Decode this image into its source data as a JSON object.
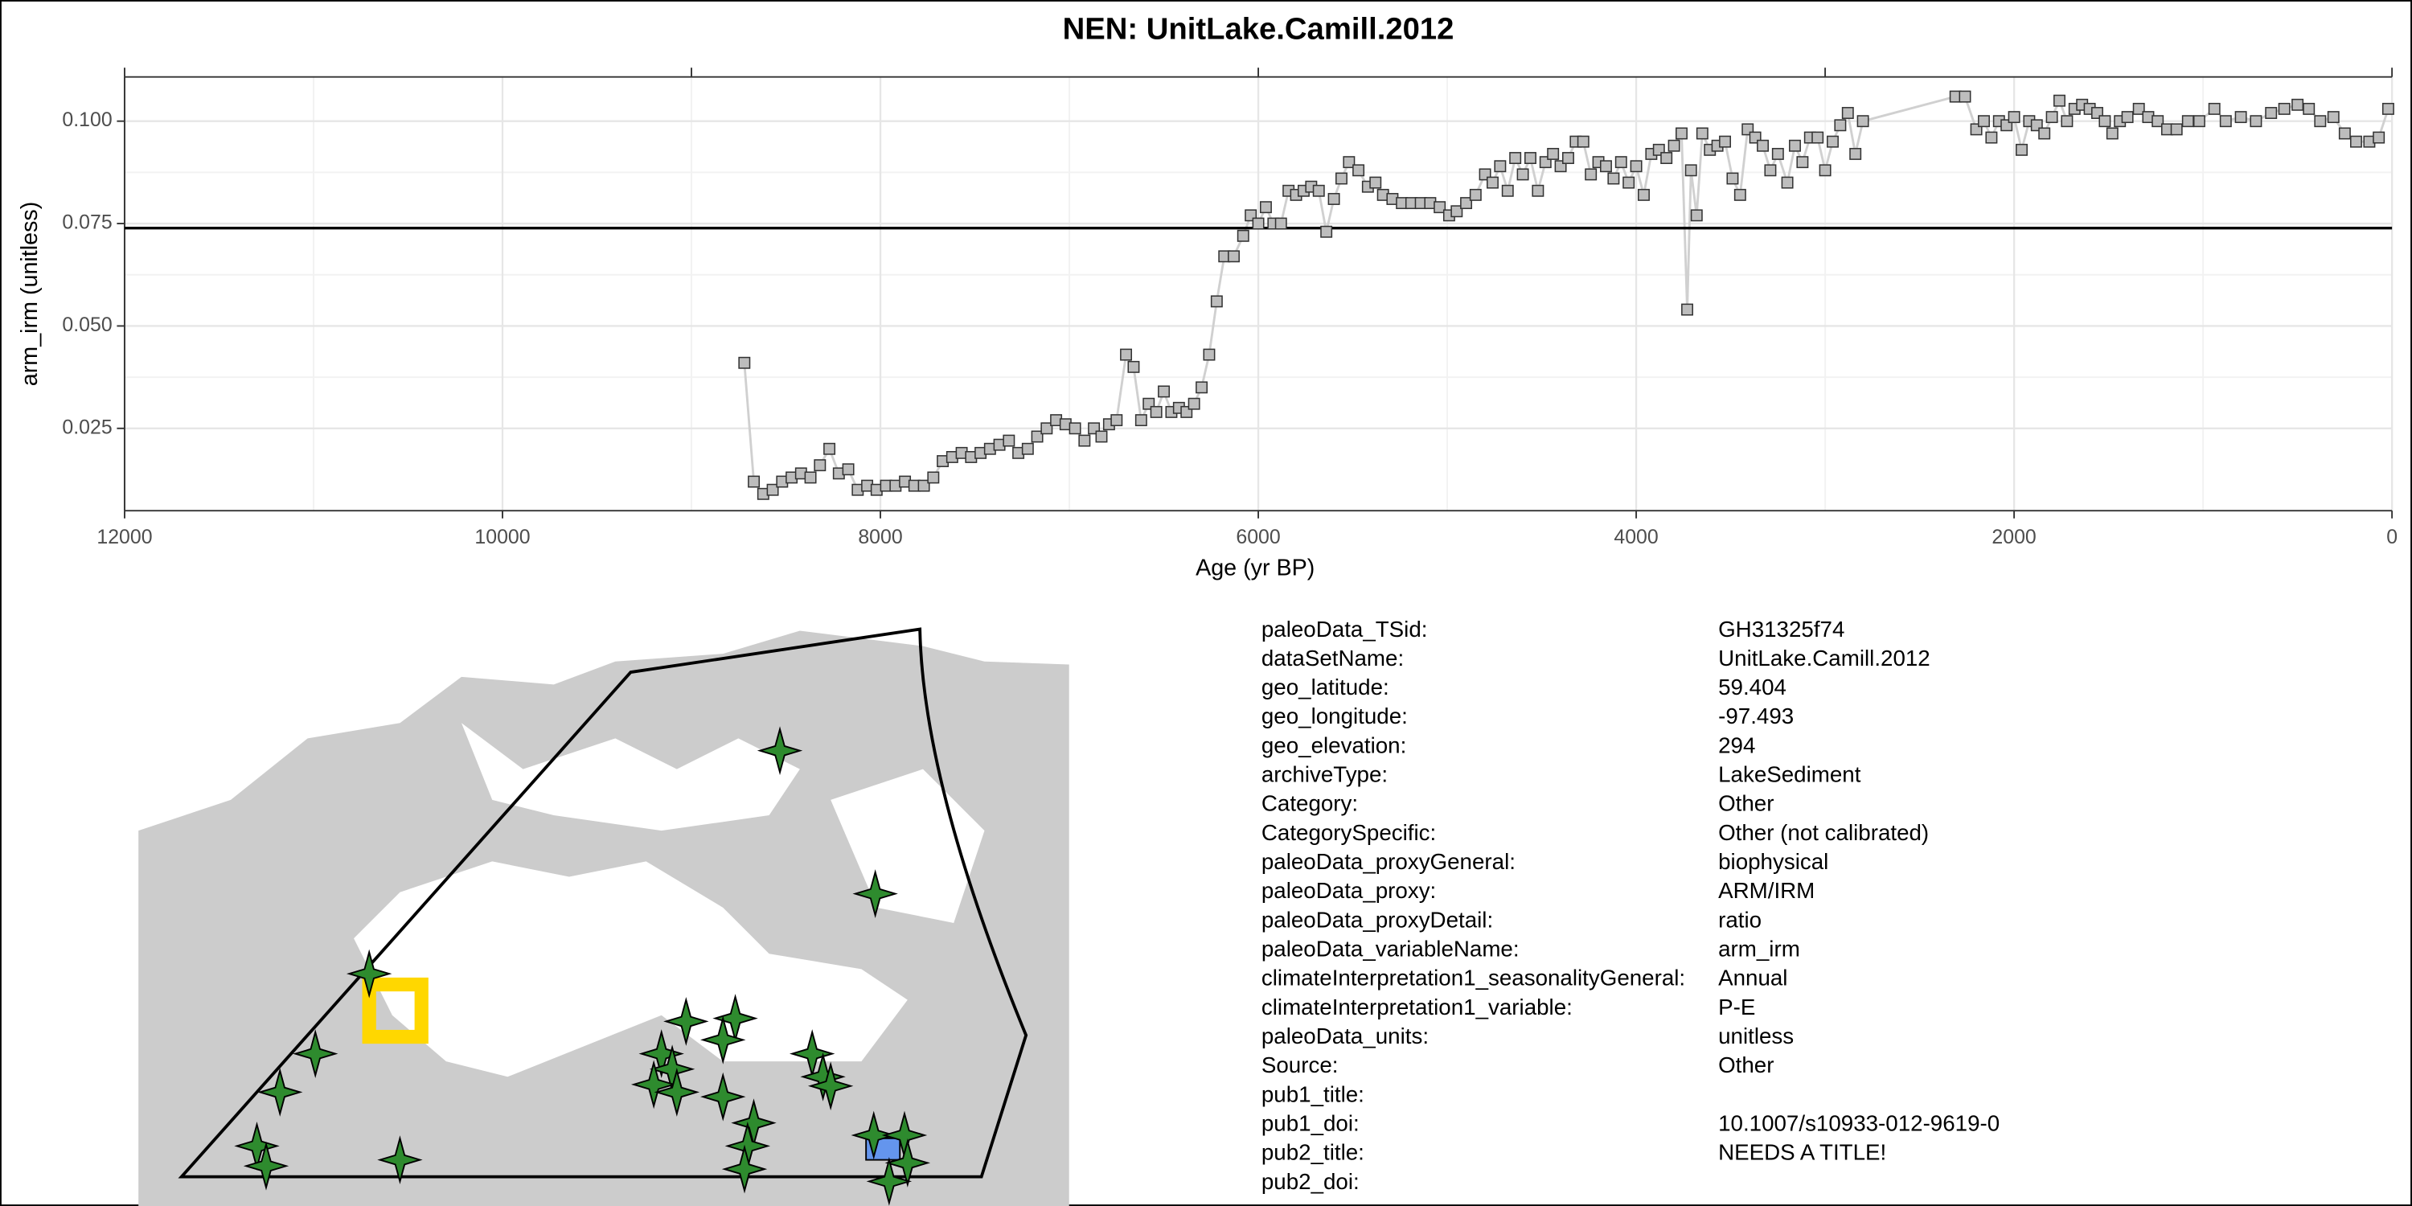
{
  "chart_data": {
    "type": "line",
    "title": "NEN: UnitLake.Camill.2012",
    "xlabel": "Age (yr BP)",
    "ylabel": "arm_irm (unitless)",
    "x": [
      8720,
      8670,
      8620,
      8570,
      8520,
      8470,
      8420,
      8370,
      8320,
      8270,
      8220,
      8170,
      8120,
      8070,
      8020,
      7970,
      7920,
      7870,
      7820,
      7770,
      7720,
      7670,
      7620,
      7570,
      7520,
      7470,
      7420,
      7370,
      7320,
      7270,
      7220,
      7170,
      7120,
      7070,
      7020,
      6970,
      6920,
      6870,
      6830,
      6790,
      6750,
      6700,
      6660,
      6620,
      6580,
      6540,
      6500,
      6460,
      6420,
      6380,
      6340,
      6300,
      6260,
      6220,
      6180,
      6130,
      6080,
      6040,
      6000,
      5960,
      5920,
      5880,
      5840,
      5800,
      5760,
      5720,
      5680,
      5640,
      5600,
      5560,
      5520,
      5470,
      5420,
      5380,
      5340,
      5290,
      5240,
      5190,
      5140,
      5090,
      5040,
      4990,
      4950,
      4900,
      4850,
      4800,
      4760,
      4720,
      4680,
      4640,
      4600,
      4560,
      4520,
      4480,
      4440,
      4400,
      4360,
      4320,
      4280,
      4240,
      4200,
      4160,
      4120,
      4080,
      4040,
      4000,
      3960,
      3920,
      3880,
      3840,
      3800,
      3760,
      3730,
      3710,
      3680,
      3650,
      3610,
      3570,
      3530,
      3490,
      3450,
      3410,
      3370,
      3330,
      3290,
      3250,
      3200,
      3160,
      3120,
      3080,
      3040,
      3000,
      2960,
      2920,
      2880,
      2840,
      2800,
      2310,
      2260,
      2200,
      2160,
      2120,
      2080,
      2040,
      2000,
      1960,
      1920,
      1880,
      1840,
      1800,
      1760,
      1720,
      1680,
      1640,
      1600,
      1560,
      1520,
      1480,
      1440,
      1400,
      1340,
      1290,
      1240,
      1190,
      1140,
      1080,
      1020,
      940,
      880,
      800,
      720,
      640,
      570,
      500,
      440,
      380,
      310,
      250,
      190,
      120,
      70,
      20
    ],
    "values": [
      0.041,
      0.012,
      0.009,
      0.01,
      0.012,
      0.013,
      0.014,
      0.013,
      0.016,
      0.02,
      0.014,
      0.015,
      0.01,
      0.011,
      0.01,
      0.011,
      0.011,
      0.012,
      0.011,
      0.011,
      0.013,
      0.017,
      0.018,
      0.019,
      0.018,
      0.019,
      0.02,
      0.021,
      0.022,
      0.019,
      0.02,
      0.023,
      0.025,
      0.027,
      0.026,
      0.025,
      0.022,
      0.025,
      0.023,
      0.026,
      0.027,
      0.043,
      0.04,
      0.027,
      0.031,
      0.029,
      0.034,
      0.029,
      0.03,
      0.029,
      0.031,
      0.035,
      0.043,
      0.056,
      0.067,
      0.067,
      0.072,
      0.077,
      0.075,
      0.079,
      0.075,
      0.075,
      0.083,
      0.082,
      0.083,
      0.084,
      0.083,
      0.073,
      0.081,
      0.086,
      0.09,
      0.088,
      0.084,
      0.085,
      0.082,
      0.081,
      0.08,
      0.08,
      0.08,
      0.08,
      0.079,
      0.077,
      0.078,
      0.08,
      0.082,
      0.087,
      0.085,
      0.089,
      0.083,
      0.091,
      0.087,
      0.091,
      0.083,
      0.09,
      0.092,
      0.089,
      0.091,
      0.095,
      0.095,
      0.087,
      0.09,
      0.089,
      0.086,
      0.09,
      0.085,
      0.089,
      0.082,
      0.092,
      0.093,
      0.091,
      0.094,
      0.097,
      0.054,
      0.088,
      0.077,
      0.097,
      0.093,
      0.094,
      0.095,
      0.086,
      0.082,
      0.098,
      0.096,
      0.094,
      0.088,
      0.092,
      0.085,
      0.094,
      0.09,
      0.096,
      0.096,
      0.088,
      0.095,
      0.099,
      0.102,
      0.092,
      0.1,
      0.106,
      0.106,
      0.098,
      0.1,
      0.096,
      0.1,
      0.099,
      0.101,
      0.093,
      0.1,
      0.099,
      0.097,
      0.101,
      0.105,
      0.1,
      0.103,
      0.104,
      0.103,
      0.102,
      0.1,
      0.097,
      0.1,
      0.101,
      0.103,
      0.101,
      0.1,
      0.098,
      0.098,
      0.1,
      0.1,
      0.103,
      0.1,
      0.101,
      0.1,
      0.102,
      0.103,
      0.104,
      0.103,
      0.1,
      0.101,
      0.097,
      0.095,
      0.095,
      0.096,
      0.103
    ],
    "color": "#bdbdbd",
    "line_color": "#d0d0d0",
    "xlim": [
      12000,
      0
    ],
    "xticks": [
      12000,
      10000,
      8000,
      6000,
      4000,
      2000,
      0
    ],
    "x2ticks": [
      12000,
      9000,
      6000,
      3000,
      0
    ],
    "ylim": [
      0.0049,
      0.1108
    ],
    "yticks": [
      0.025,
      {
        "value": 0.05,
        "label": "0.050"
      },
      0.075,
      {
        "value": 0.1,
        "label": "0.100"
      }
    ],
    "hline": 0.0739,
    "grid": true
  },
  "metadata": {
    "rows": [
      [
        "paleoData_TSid:",
        "GH31325f74"
      ],
      [
        "dataSetName:",
        "UnitLake.Camill.2012"
      ],
      [
        "geo_latitude:",
        "59.404"
      ],
      [
        "geo_longitude:",
        "-97.493"
      ],
      [
        "geo_elevation:",
        "294"
      ],
      [
        "archiveType:",
        "LakeSediment"
      ],
      [
        "Category:",
        "Other"
      ],
      [
        "CategorySpecific:",
        "Other (not calibrated)"
      ],
      [
        "paleoData_proxyGeneral:",
        "biophysical"
      ],
      [
        "paleoData_proxy:",
        "ARM/IRM"
      ],
      [
        "paleoData_proxyDetail:",
        "ratio"
      ],
      [
        "paleoData_variableName:",
        "arm_irm"
      ],
      [
        "climateInterpretation1_seasonalityGeneral:",
        "Annual"
      ],
      [
        "climateInterpretation1_variable:",
        "P-E"
      ],
      [
        "paleoData_units:",
        "unitless"
      ],
      [
        "Source:",
        "Other"
      ],
      [
        "pub1_title:"
      ],
      [
        "pub1_doi:",
        "10.1007/s10933-012-9619-0"
      ],
      [
        "pub2_title:",
        "NEEDS A TITLE!"
      ],
      [
        "pub2_doi:"
      ]
    ]
  }
}
